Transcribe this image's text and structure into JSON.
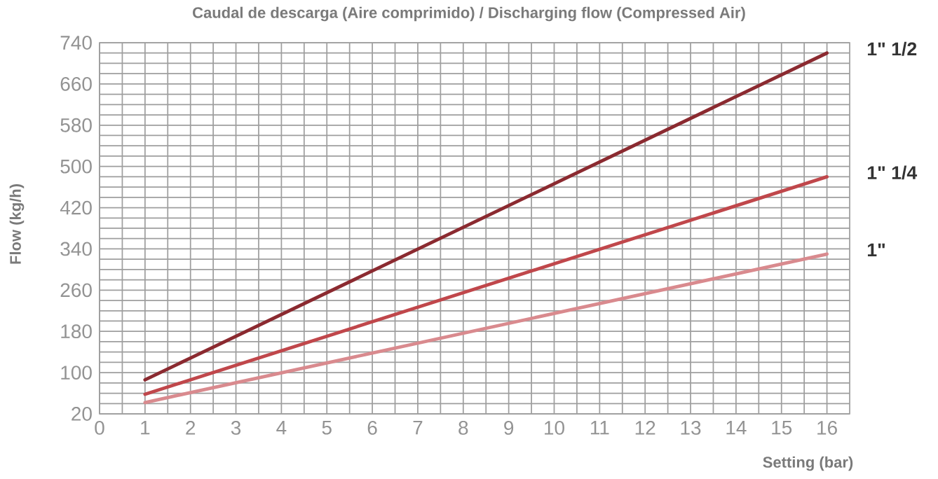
{
  "chart_data": {
    "type": "line",
    "title": "Caudal de descarga (Aire comprimido) / Discharging flow (Compressed Air)",
    "xlabel": "Setting (bar)",
    "ylabel": "Flow (kg/h)",
    "x": [
      1,
      16
    ],
    "series": [
      {
        "name": "1\" 1/2",
        "color": "#8b2a30",
        "values": [
          86,
          720
        ]
      },
      {
        "name": "1\" 1/4",
        "color": "#c0474b",
        "values": [
          58,
          480
        ]
      },
      {
        "name": "1\"",
        "color": "#d98a8e",
        "values": [
          42,
          330
        ]
      }
    ],
    "xlim": [
      0,
      16.5
    ],
    "xticks": [
      0,
      1,
      2,
      3,
      4,
      5,
      6,
      7,
      8,
      9,
      10,
      11,
      12,
      13,
      14,
      15,
      16
    ],
    "ylim": [
      20,
      740
    ],
    "yticks": [
      20,
      100,
      180,
      260,
      340,
      420,
      500,
      580,
      660,
      740
    ],
    "grid": true,
    "legend": false,
    "marker": "none",
    "line_style": "solid"
  }
}
